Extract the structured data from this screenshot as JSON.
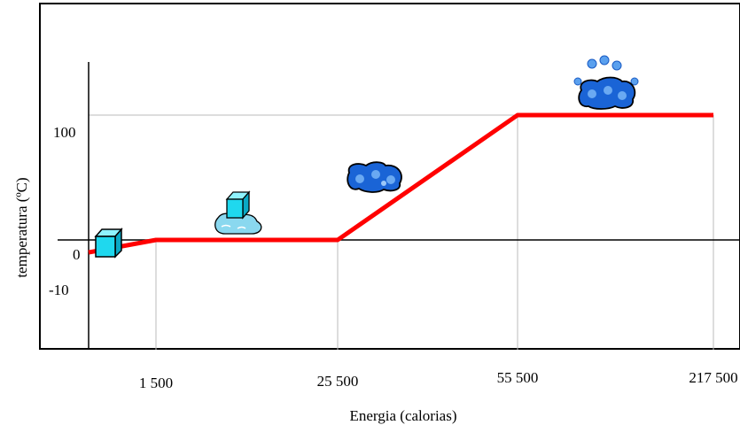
{
  "chart_data": {
    "type": "line",
    "xlabel": "Energia (calorias)",
    "ylabel": "temperatura (ºC)",
    "x_categories": [
      "1 500",
      "25 500",
      "55 500",
      "217 500"
    ],
    "y_ticks": [
      "100",
      "0",
      "-10"
    ],
    "y_tick_values": [
      100,
      0,
      -10
    ],
    "ylim": [
      -30,
      150
    ],
    "series": [
      {
        "color": "#ff0000",
        "points": [
          {
            "x": "0",
            "y": -10
          },
          {
            "x": "1 500",
            "y": 0
          },
          {
            "x": "25 500",
            "y": 0
          },
          {
            "x": "55 500",
            "y": 100
          },
          {
            "x": "217 500",
            "y": 100
          }
        ]
      }
    ],
    "annotations": [
      {
        "icon": "ice-cube-icon",
        "state": "solid"
      },
      {
        "icon": "melting-ice-icon",
        "state": "melting"
      },
      {
        "icon": "water-icon",
        "state": "liquid"
      },
      {
        "icon": "vapor-icon",
        "state": "gas"
      }
    ]
  }
}
